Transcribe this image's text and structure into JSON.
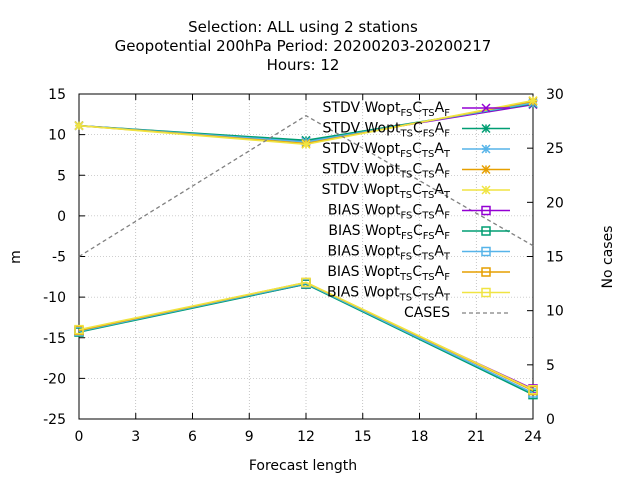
{
  "chart_data": {
    "type": "line",
    "title_lines": [
      "Selection: ALL using     2 stations",
      "Geopotential 200hPa   Period: 20200203-20200217",
      "Hours:  12"
    ],
    "xlabel": "Forecast length",
    "ylabel": "m",
    "y2label": "No cases",
    "x": [
      0,
      12,
      24
    ],
    "xlim": [
      0,
      24
    ],
    "xticks": [
      0,
      3,
      6,
      9,
      12,
      15,
      18,
      21,
      24
    ],
    "ylim": [
      -25,
      15
    ],
    "yticks": [
      -25,
      -20,
      -15,
      -10,
      -5,
      0,
      5,
      10,
      15
    ],
    "y2lim": [
      0,
      30
    ],
    "y2ticks": [
      0,
      5,
      10,
      15,
      20,
      25,
      30
    ],
    "grid": true,
    "legend_position": "top-right",
    "series": [
      {
        "name": "STDV Wopt_FS C_TS A_F",
        "label": {
          "pre": "STDV Wopt",
          "s1": "FS",
          "m1": "C",
          "s2": "TS",
          "m2": "A",
          "s3": "F"
        },
        "color": "#9400d3",
        "marker": "x",
        "axis": "y",
        "values": [
          11.1,
          9.2,
          13.7
        ]
      },
      {
        "name": "STDV Wopt_TS C_FS A_F",
        "label": {
          "pre": "STDV Wopt",
          "s1": "TS",
          "m1": "C",
          "s2": "FS",
          "m2": "A",
          "s3": "F"
        },
        "color": "#009e73",
        "marker": "star",
        "axis": "y",
        "values": [
          11.1,
          9.3,
          13.8
        ]
      },
      {
        "name": "STDV Wopt_FS C_TS A_T",
        "label": {
          "pre": "STDV Wopt",
          "s1": "FS",
          "m1": "C",
          "s2": "TS",
          "m2": "A",
          "s3": "T"
        },
        "color": "#56b4e9",
        "marker": "star",
        "axis": "y",
        "values": [
          11.1,
          9.1,
          13.9
        ]
      },
      {
        "name": "STDV Wopt_TS C_TS A_F",
        "label": {
          "pre": "STDV Wopt",
          "s1": "TS",
          "m1": "C",
          "s2": "TS",
          "m2": "A",
          "s3": "F"
        },
        "color": "#e69f00",
        "marker": "star",
        "axis": "y",
        "values": [
          11.1,
          8.9,
          14.1
        ]
      },
      {
        "name": "STDV Wopt_TS C_TS A_T",
        "label": {
          "pre": "STDV Wopt",
          "s1": "TS",
          "m1": "C",
          "s2": "TS",
          "m2": "A",
          "s3": "T"
        },
        "color": "#f0e442",
        "marker": "star",
        "axis": "y",
        "values": [
          11.1,
          8.8,
          14.2
        ]
      },
      {
        "name": "BIAS Wopt_FS C_TS A_F",
        "label": {
          "pre": "BIAS Wopt",
          "s1": "FS",
          "m1": "C",
          "s2": "TS",
          "m2": "A",
          "s3": "F"
        },
        "color": "#9400d3",
        "marker": "square",
        "axis": "y",
        "values": [
          -14.2,
          -8.4,
          -21.3
        ]
      },
      {
        "name": "BIAS Wopt_FS C_FS A_F",
        "label": {
          "pre": "BIAS Wopt",
          "s1": "FS",
          "m1": "C",
          "s2": "FS",
          "m2": "A",
          "s3": "F"
        },
        "color": "#009e73",
        "marker": "square",
        "axis": "y",
        "values": [
          -14.3,
          -8.4,
          -22.0
        ]
      },
      {
        "name": "BIAS Wopt_FS C_TS A_T",
        "label": {
          "pre": "BIAS Wopt",
          "s1": "FS",
          "m1": "C",
          "s2": "TS",
          "m2": "A",
          "s3": "T"
        },
        "color": "#56b4e9",
        "marker": "square",
        "axis": "y",
        "values": [
          -14.2,
          -8.3,
          -21.8
        ]
      },
      {
        "name": "BIAS Wopt_TS C_TS A_F",
        "label": {
          "pre": "BIAS Wopt",
          "s1": "TS",
          "m1": "C",
          "s2": "TS",
          "m2": "A",
          "s3": "F"
        },
        "color": "#e69f00",
        "marker": "square",
        "axis": "y",
        "values": [
          -14.1,
          -8.2,
          -21.5
        ]
      },
      {
        "name": "BIAS Wopt_TS C_TS A_T",
        "label": {
          "pre": "BIAS Wopt",
          "s1": "TS",
          "m1": "C",
          "s2": "TS",
          "m2": "A",
          "s3": "T"
        },
        "color": "#f0e442",
        "marker": "square",
        "axis": "y",
        "values": [
          -14.0,
          -8.2,
          -21.4
        ]
      },
      {
        "name": "CASES",
        "label": {
          "pre": "CASES"
        },
        "color": "#808080",
        "marker": "none",
        "dash": true,
        "axis": "y2",
        "values": [
          15,
          28,
          16
        ]
      }
    ]
  }
}
